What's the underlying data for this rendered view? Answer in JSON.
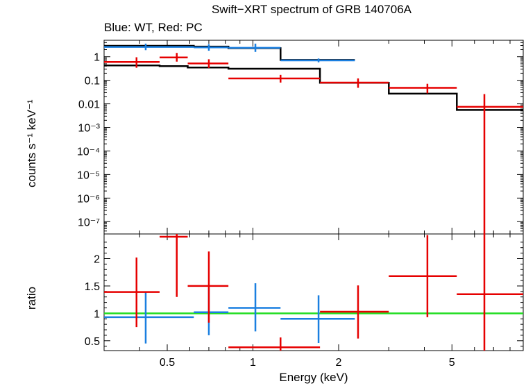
{
  "title": "Swift−XRT spectrum of GRB 140706A",
  "subtitle": "Blue: WT, Red: PC",
  "colors": {
    "WT": "#1a7fe0",
    "PC": "#e60000",
    "model": "#000000",
    "unity": "#22dd22"
  },
  "chart_data": [
    {
      "type": "scatter",
      "panel": "spectrum",
      "xlabel": "Energy (keV)",
      "ylabel": "counts s⁻¹ keV⁻¹",
      "xscale": "log",
      "yscale": "log",
      "xlim": [
        0.3,
        8.9
      ],
      "ylim": [
        3e-08,
        5
      ],
      "x_ticks": [
        "0.5",
        "1",
        "2",
        "5"
      ],
      "y_ticks": [
        "1",
        "0.1",
        "0.01",
        "10⁻³",
        "10⁻⁴",
        "10⁻⁵",
        "10⁻⁶",
        "10⁻⁷"
      ],
      "series": [
        {
          "name": "WT",
          "points": [
            {
              "x": 0.42,
              "xlo": 0.3,
              "xhi": 0.62,
              "y": 2.6,
              "ylo": 1.9,
              "yhi": 3.6
            },
            {
              "x": 0.7,
              "xlo": 0.62,
              "xhi": 0.82,
              "y": 2.5,
              "ylo": 1.8,
              "yhi": 3.4
            },
            {
              "x": 1.02,
              "xlo": 0.82,
              "xhi": 1.25,
              "y": 2.4,
              "ylo": 1.6,
              "yhi": 3.6
            },
            {
              "x": 1.7,
              "xlo": 1.25,
              "xhi": 2.28,
              "y": 0.7,
              "ylo": 0.58,
              "yhi": 0.84
            }
          ]
        },
        {
          "name": "PC",
          "points": [
            {
              "x": 0.39,
              "xlo": 0.3,
              "xhi": 0.47,
              "y": 0.6,
              "ylo": 0.34,
              "yhi": 0.95
            },
            {
              "x": 0.54,
              "xlo": 0.47,
              "xhi": 0.59,
              "y": 0.93,
              "ylo": 0.62,
              "yhi": 1.45
            },
            {
              "x": 0.7,
              "xlo": 0.59,
              "xhi": 0.82,
              "y": 0.52,
              "ylo": 0.33,
              "yhi": 0.78
            },
            {
              "x": 1.25,
              "xlo": 0.82,
              "xhi": 1.72,
              "y": 0.12,
              "ylo": 0.08,
              "yhi": 0.17
            },
            {
              "x": 2.34,
              "xlo": 1.72,
              "xhi": 3.0,
              "y": 0.08,
              "ylo": 0.048,
              "yhi": 0.12
            },
            {
              "x": 4.1,
              "xlo": 3.0,
              "xhi": 5.2,
              "y": 0.048,
              "ylo": 0.028,
              "yhi": 0.071
            },
            {
              "x": 6.5,
              "xlo": 5.2,
              "xhi": 8.9,
              "y": 0.0075,
              "ylo": 3e-08,
              "yhi": 0.026
            }
          ]
        }
      ],
      "model": [
        {
          "name": "WT",
          "steps": [
            {
              "xlo": 0.3,
              "xhi": 0.62,
              "y": 2.9
            },
            {
              "xlo": 0.62,
              "xhi": 0.82,
              "y": 2.7
            },
            {
              "xlo": 0.82,
              "xhi": 1.25,
              "y": 2.3
            },
            {
              "xlo": 1.25,
              "xhi": 2.28,
              "y": 0.73
            }
          ]
        },
        {
          "name": "PC",
          "steps": [
            {
              "xlo": 0.3,
              "xhi": 0.47,
              "y": 0.43
            },
            {
              "xlo": 0.47,
              "xhi": 0.59,
              "y": 0.4
            },
            {
              "xlo": 0.59,
              "xhi": 0.82,
              "y": 0.35
            },
            {
              "xlo": 0.82,
              "xhi": 1.72,
              "y": 0.31
            },
            {
              "xlo": 1.72,
              "xhi": 3.0,
              "y": 0.078
            },
            {
              "xlo": 3.0,
              "xhi": 5.2,
              "y": 0.027
            },
            {
              "xlo": 5.2,
              "xhi": 8.9,
              "y": 0.0055
            }
          ]
        }
      ]
    },
    {
      "type": "scatter",
      "panel": "ratio",
      "xlabel": "Energy (keV)",
      "ylabel": "ratio",
      "xscale": "log",
      "xlim": [
        0.3,
        8.9
      ],
      "ylim": [
        0.32,
        2.45
      ],
      "y_ticks": [
        "0.5",
        "1",
        "1.5",
        "2"
      ],
      "reference_line": 1,
      "series": [
        {
          "name": "WT",
          "points": [
            {
              "x": 0.42,
              "xlo": 0.3,
              "xhi": 0.62,
              "y": 0.93,
              "ylo": 0.45,
              "yhi": 1.38
            },
            {
              "x": 0.7,
              "xlo": 0.62,
              "xhi": 0.82,
              "y": 1.02,
              "ylo": 0.6,
              "yhi": 1.47
            },
            {
              "x": 1.02,
              "xlo": 0.82,
              "xhi": 1.25,
              "y": 1.1,
              "ylo": 0.67,
              "yhi": 1.55
            },
            {
              "x": 1.7,
              "xlo": 1.25,
              "xhi": 2.28,
              "y": 0.9,
              "ylo": 0.46,
              "yhi": 1.33
            }
          ]
        },
        {
          "name": "PC",
          "points": [
            {
              "x": 0.39,
              "xlo": 0.3,
              "xhi": 0.47,
              "y": 1.39,
              "ylo": 0.75,
              "yhi": 2.02
            },
            {
              "x": 0.54,
              "xlo": 0.47,
              "xhi": 0.59,
              "y": 2.4,
              "ylo": 1.3,
              "yhi": 2.45
            },
            {
              "x": 0.7,
              "xlo": 0.59,
              "xhi": 0.82,
              "y": 1.5,
              "ylo": 0.83,
              "yhi": 2.13
            },
            {
              "x": 1.25,
              "xlo": 0.82,
              "xhi": 1.72,
              "y": 0.38,
              "ylo": 0.32,
              "yhi": 0.56
            },
            {
              "x": 2.34,
              "xlo": 1.72,
              "xhi": 3.0,
              "y": 1.03,
              "ylo": 0.54,
              "yhi": 1.51
            },
            {
              "x": 4.1,
              "xlo": 3.0,
              "xhi": 5.2,
              "y": 1.68,
              "ylo": 0.93,
              "yhi": 2.43
            },
            {
              "x": 6.5,
              "xlo": 5.2,
              "xhi": 8.9,
              "y": 1.35,
              "ylo": 0.32,
              "yhi": 2.45
            }
          ]
        }
      ]
    }
  ]
}
